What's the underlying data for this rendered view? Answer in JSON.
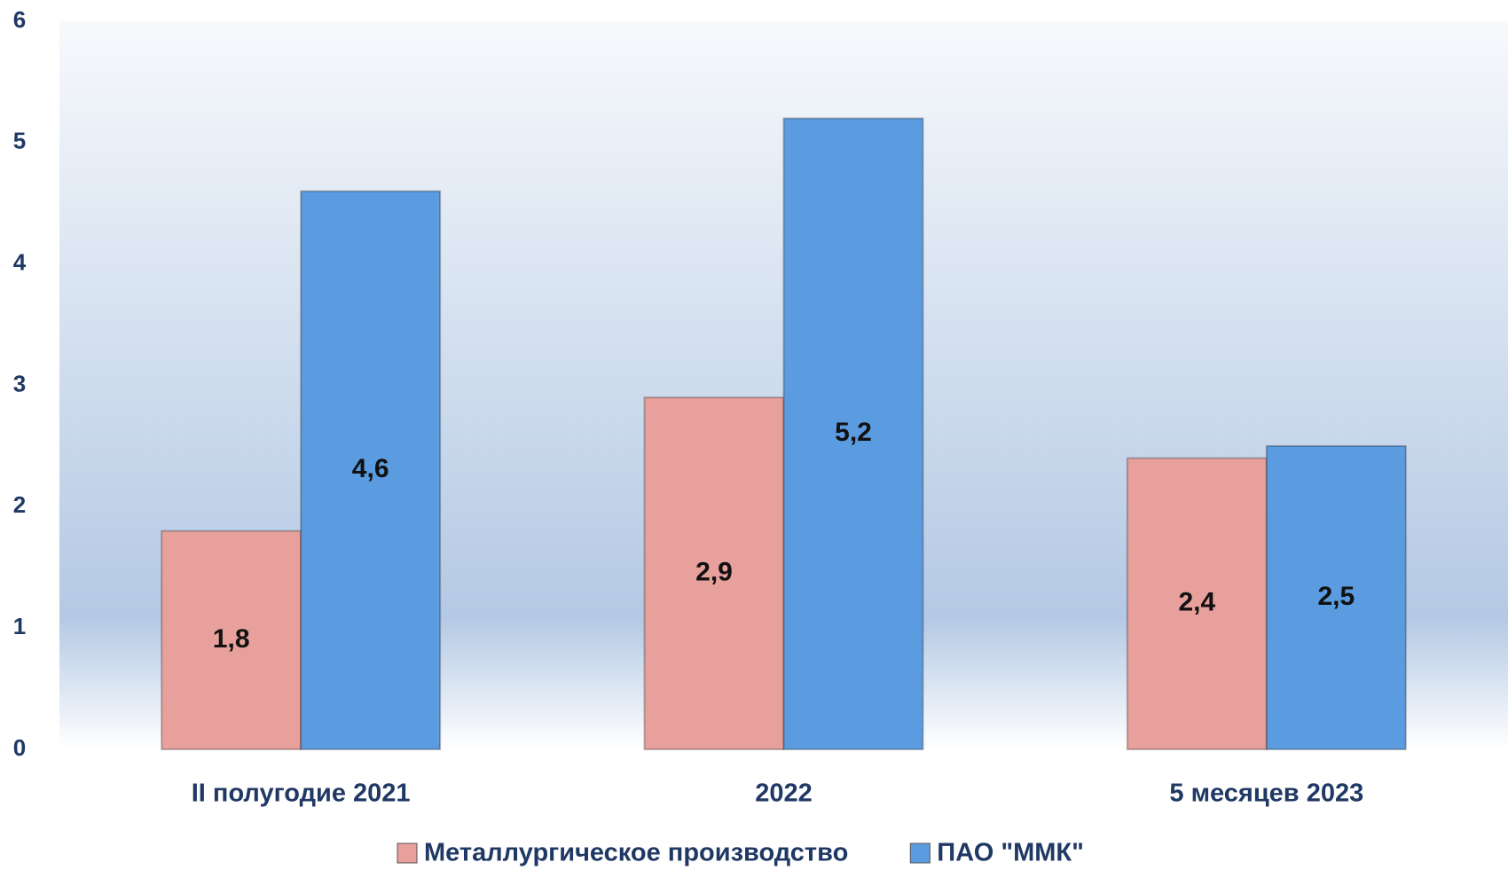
{
  "chart_data": {
    "type": "bar",
    "categories": [
      "II полугодие 2021",
      "2022",
      "5 месяцев 2023"
    ],
    "series": [
      {
        "name": "Металлургическое производство",
        "color": "#e8a09c",
        "values": [
          1.8,
          2.9,
          2.4
        ],
        "value_labels": [
          "1,8",
          "2,9",
          "2,4"
        ]
      },
      {
        "name": "ПАО \"ММК\"",
        "color": "#5b9be0",
        "values": [
          4.6,
          5.2,
          2.5
        ],
        "value_labels": [
          "4,6",
          "5,2",
          "2,5"
        ]
      }
    ],
    "ylim": [
      0,
      6
    ],
    "yticks": [
      0,
      1,
      2,
      3,
      4,
      5,
      6
    ],
    "legend": "bottom"
  }
}
